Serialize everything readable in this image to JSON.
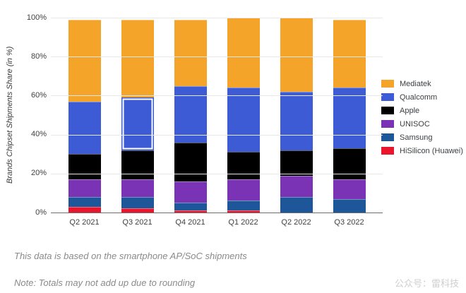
{
  "chart_data": {
    "type": "bar",
    "stacked": true,
    "title": "",
    "ylabel": "Brands Chipset Shipments Share (in %)",
    "xlabel": "",
    "ylim": [
      0,
      100
    ],
    "yticks": [
      0,
      20,
      40,
      60,
      80,
      100
    ],
    "grid": true,
    "legend_position": "right",
    "categories": [
      "Q2 2021",
      "Q3 2021",
      "Q4 2021",
      "Q1 2022",
      "Q2 2022",
      "Q3 2022"
    ],
    "series": [
      {
        "name": "HiSilicon (Huawei)",
        "color": "#e9152d",
        "values": [
          3,
          2,
          1,
          1,
          0,
          0
        ]
      },
      {
        "name": "Samsung",
        "color": "#1d5699",
        "values": [
          5,
          6,
          4,
          5,
          8,
          7
        ]
      },
      {
        "name": "UNISOC",
        "color": "#7a33b5",
        "values": [
          9,
          9,
          11,
          11,
          11,
          10
        ]
      },
      {
        "name": "Apple",
        "color": "#000000",
        "values": [
          13,
          15,
          20,
          14,
          13,
          16
        ]
      },
      {
        "name": "Qualcomm",
        "color": "#3d5bd5",
        "values": [
          27,
          27,
          29,
          33,
          30,
          31
        ]
      },
      {
        "name": "Mediatek",
        "color": "#f5a42a",
        "values": [
          42,
          40,
          34,
          36,
          38,
          35
        ]
      }
    ],
    "legend_order": [
      "Mediatek",
      "Qualcomm",
      "Apple",
      "UNISOC",
      "Samsung",
      "HiSilicon (Huawei)"
    ],
    "highlight": {
      "category": "Q3 2021",
      "series": "Qualcomm",
      "style": "white-outline"
    },
    "layout_colors": {
      "grid": "#e8e8e8",
      "baseline": "#6e6e6e",
      "tick_text": "#3f3f3f",
      "legend_text": "#3c4043"
    }
  },
  "notes": {
    "source": "This data is based on the smartphone AP/SoC shipments",
    "rounding": "Note: Totals may not add up due to rounding",
    "watermark": "公众号：雷科技"
  }
}
